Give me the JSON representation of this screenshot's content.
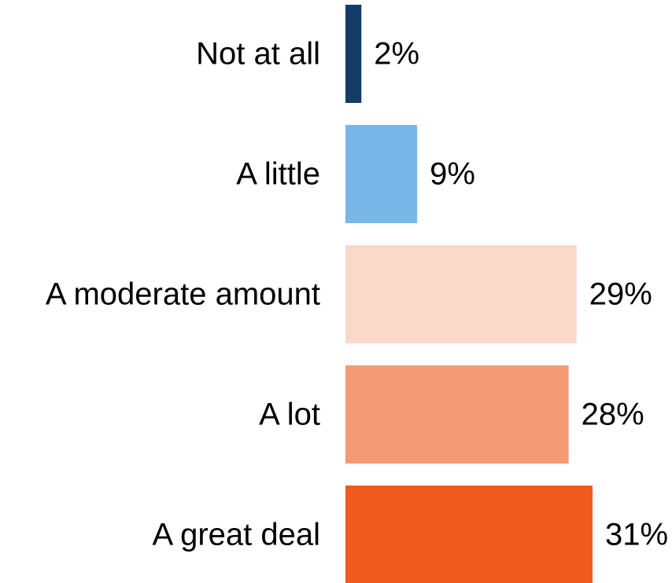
{
  "chart_data": {
    "type": "bar",
    "orientation": "horizontal",
    "categories": [
      "Not at all",
      "A little",
      "A moderate amount",
      "A lot",
      "A great deal"
    ],
    "values": [
      2,
      9,
      29,
      28,
      31
    ],
    "value_labels": [
      "2%",
      "9%",
      "29%",
      "28%",
      "31%"
    ],
    "colors": [
      "#133d66",
      "#78b7e7",
      "#fad8ca",
      "#f49a74",
      "#f05a1e"
    ],
    "xlim": [
      0,
      31
    ],
    "title": "",
    "xlabel": "",
    "ylabel": "",
    "grid": false,
    "legend": "none"
  }
}
